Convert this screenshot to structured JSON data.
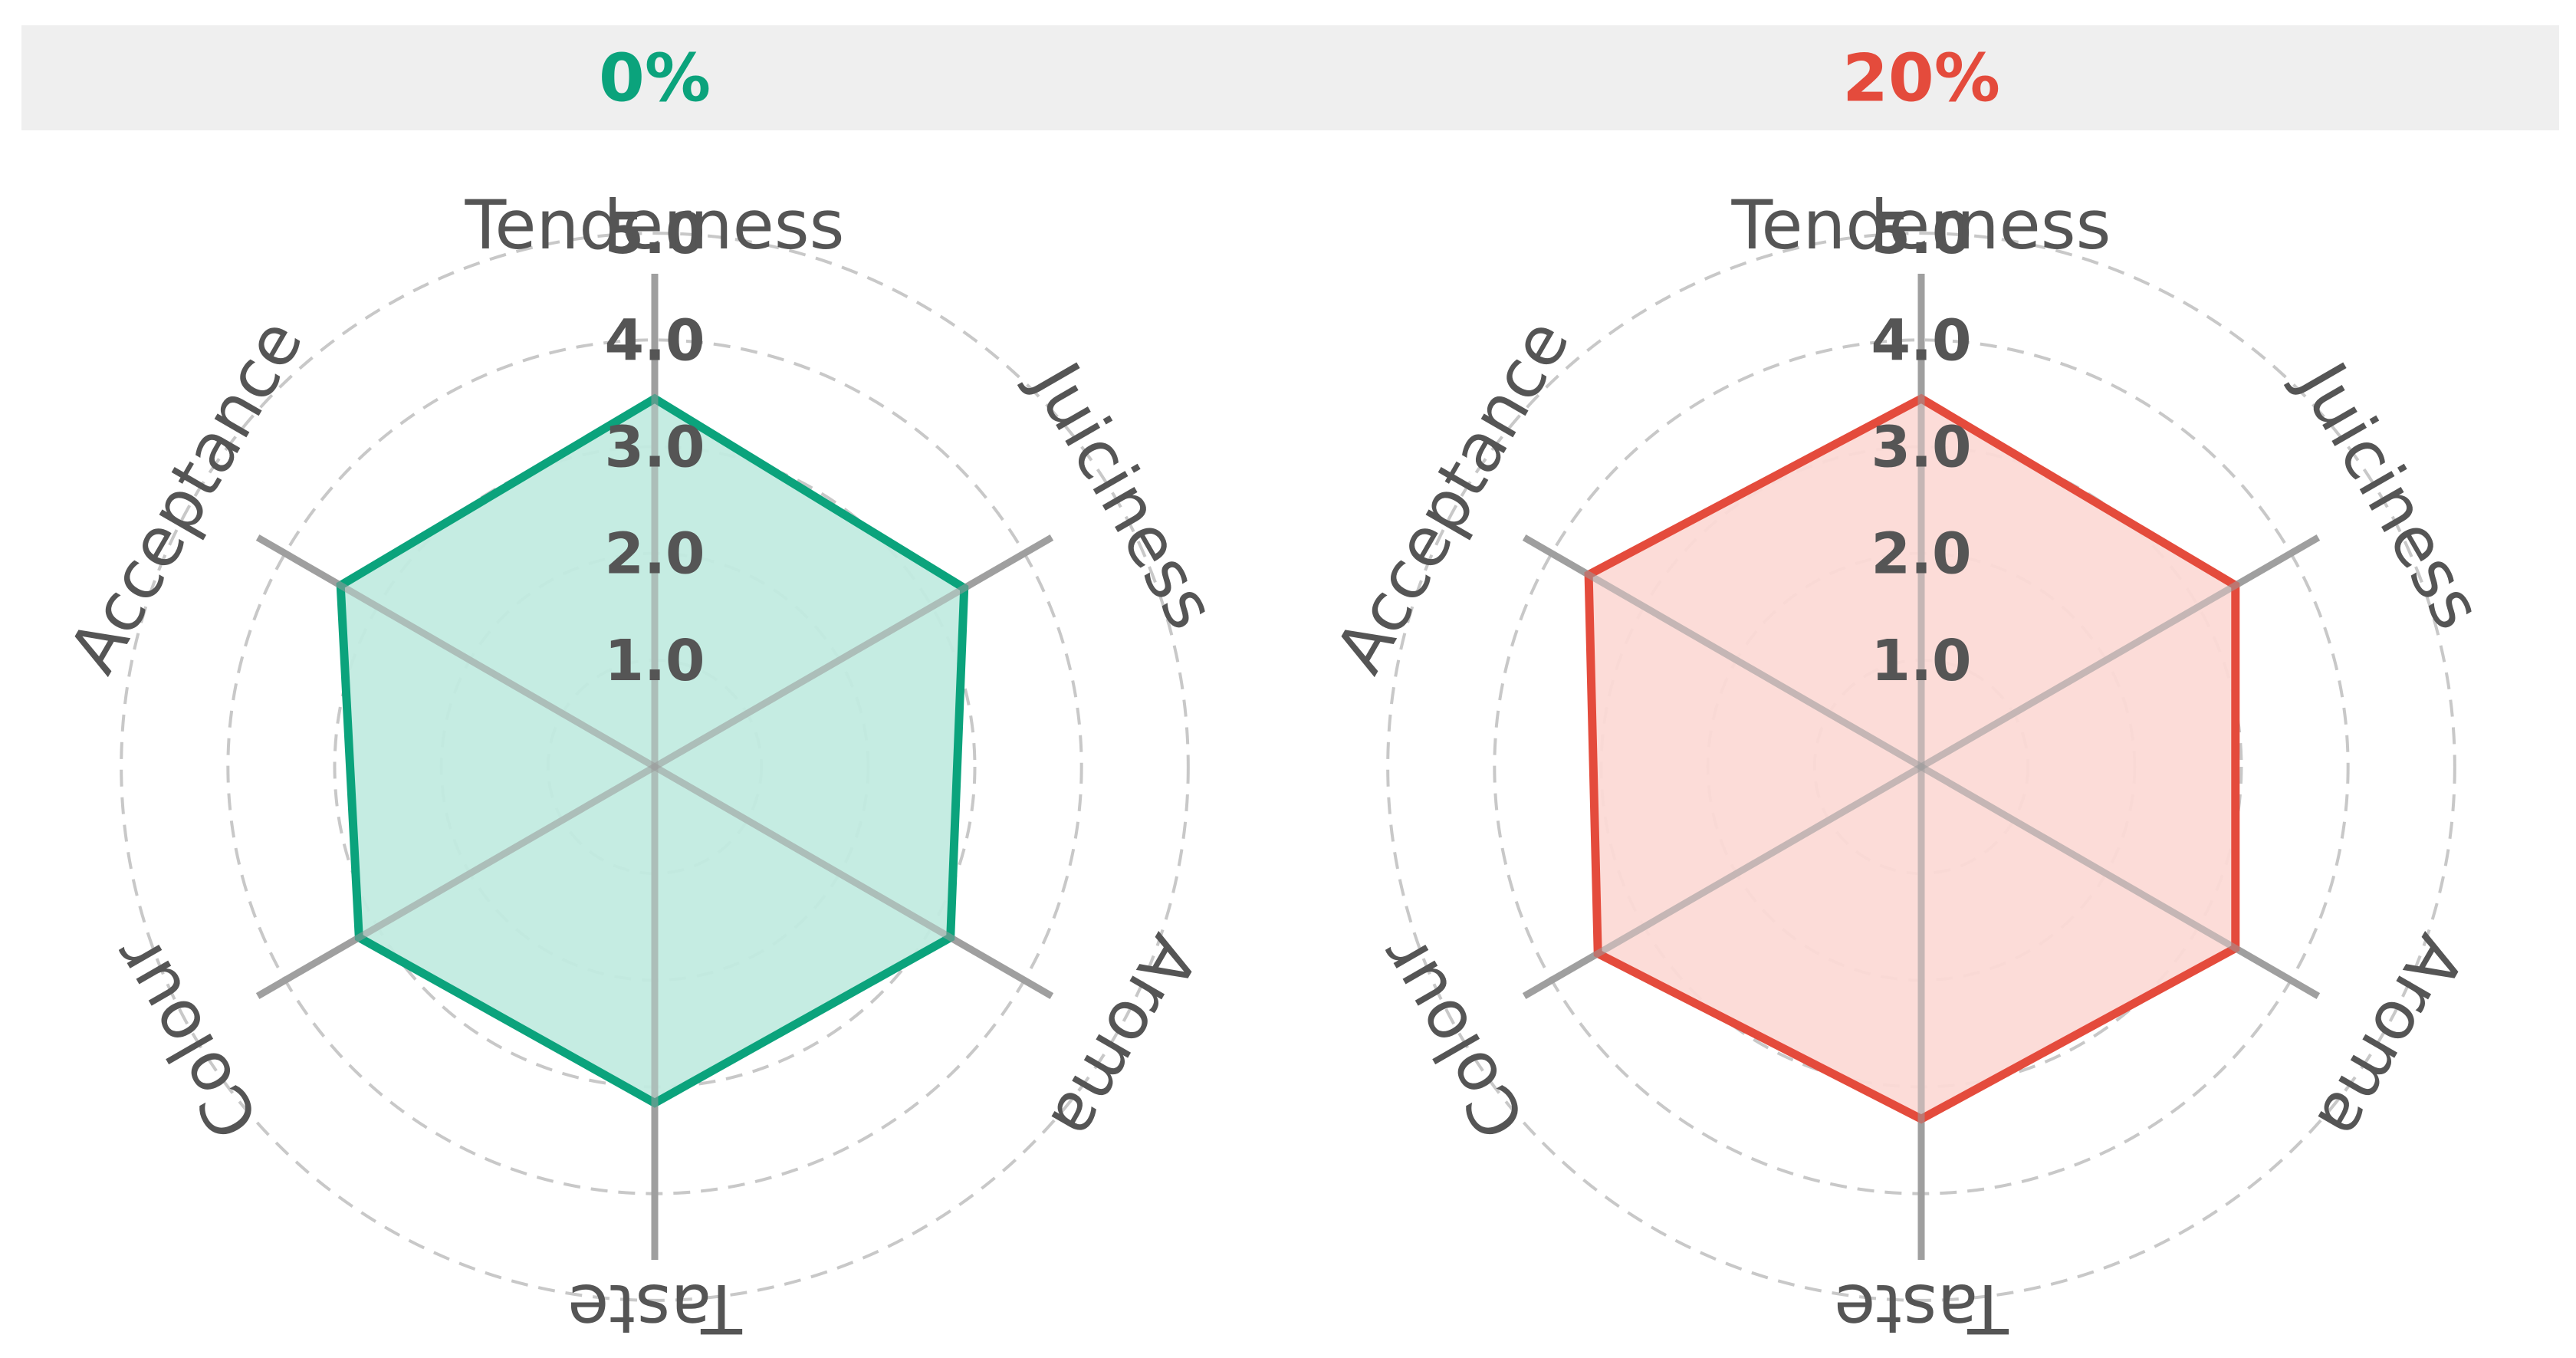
{
  "chart_data": [
    {
      "type": "radar",
      "title": "0%",
      "color": "#0ba37c",
      "fill": "#c2ebe0",
      "categories": [
        "Tenderness",
        "Juiciness",
        "Aroma",
        "Taste",
        "Colour",
        "Acceptance"
      ],
      "values": [
        3.45,
        3.35,
        3.2,
        3.15,
        3.2,
        3.4
      ],
      "ticks": [
        "1.0",
        "2.0",
        "3.0",
        "4.0",
        "5.0"
      ],
      "rlim": [
        0,
        6
      ],
      "grid": true
    },
    {
      "type": "radar",
      "title": "20%",
      "color": "#e44b3c",
      "fill": "#fcdad6",
      "categories": [
        "Tenderness",
        "Juiciness",
        "Aroma",
        "Taste",
        "Colour",
        "Acceptance"
      ],
      "values": [
        3.45,
        3.4,
        3.4,
        3.3,
        3.5,
        3.6
      ],
      "ticks": [
        "1.0",
        "2.0",
        "3.0",
        "4.0",
        "5.0"
      ],
      "rlim": [
        0,
        6
      ],
      "grid": true
    }
  ]
}
